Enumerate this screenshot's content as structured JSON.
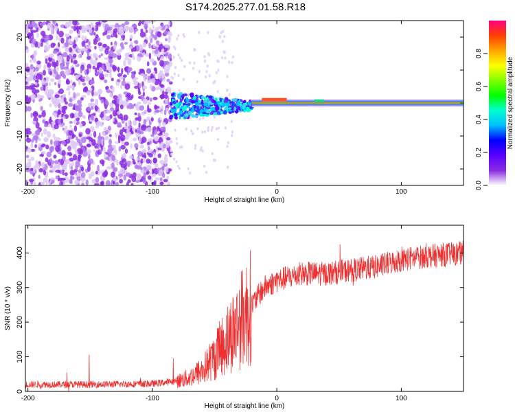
{
  "figure": {
    "title": "S174.2025.277.01.58.R18"
  },
  "chart_data": [
    {
      "type": "heatmap",
      "title": "",
      "xlabel": "Height of straight line (km)",
      "ylabel": "Frequency (Hz)",
      "xlim": [
        -202,
        150
      ],
      "ylim": [
        -25,
        25
      ],
      "xticks": [
        -200,
        -100,
        0,
        100
      ],
      "yticks": [
        -20,
        -10,
        0,
        10,
        20
      ],
      "colorbar": {
        "label": "Normalized spectral amplitude",
        "range": [
          0,
          1
        ],
        "ticks": [
          0.0,
          0.2,
          0.4,
          0.6,
          0.8
        ],
        "colormap": [
          "#ffffff",
          "#8a2be2",
          "#5a00ff",
          "#0000ff",
          "#00bfff",
          "#00ffd0",
          "#00ff00",
          "#80ff00",
          "#ffff00",
          "#ffa500",
          "#ff4000",
          "#ff0080"
        ]
      },
      "description_points": {
        "noise_region_km": [
          -202,
          -85
        ],
        "scattered_signal_km": [
          -85,
          -20
        ],
        "carrier_line_km": [
          -20,
          150
        ],
        "carrier_frequency_hz": 0,
        "carrier_bump_hz": 1
      }
    },
    {
      "type": "line",
      "title": "",
      "xlabel": "Height of straight line (km)",
      "ylabel": "SNR (10 * v/v)",
      "xlim": [
        -202,
        150
      ],
      "ylim": [
        0,
        480
      ],
      "xticks": [
        -200,
        -100,
        0,
        100
      ],
      "yticks": [
        0,
        100,
        200,
        300,
        400
      ],
      "series": [
        {
          "name": "SNR",
          "color": "#f03030",
          "x": [
            -200,
            -150,
            -100,
            -80,
            -70,
            -60,
            -50,
            -40,
            -30,
            -20,
            -10,
            0,
            10,
            20,
            40,
            60,
            80,
            100,
            120,
            150
          ],
          "y": [
            20,
            20,
            22,
            30,
            40,
            60,
            100,
            150,
            200,
            250,
            300,
            320,
            330,
            340,
            340,
            350,
            360,
            380,
            390,
            400
          ]
        }
      ]
    }
  ]
}
